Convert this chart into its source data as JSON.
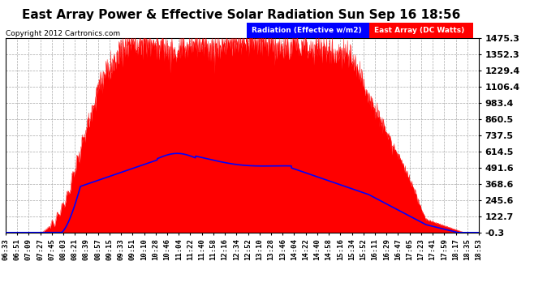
{
  "title": "East Array Power & Effective Solar Radiation Sun Sep 16 18:56",
  "copyright": "Copyright 2012 Cartronics.com",
  "legend_radiation": "Radiation (Effective w/m2)",
  "legend_array": "East Array (DC Watts)",
  "yticks": [
    -0.3,
    122.7,
    245.6,
    368.6,
    491.6,
    614.5,
    737.5,
    860.5,
    983.4,
    1106.4,
    1229.4,
    1352.3,
    1475.3
  ],
  "ymin": -0.3,
  "ymax": 1475.3,
  "bg_color": "#ffffff",
  "plot_bg_color": "#ffffff",
  "grid_color": "#aaaaaa",
  "radiation_color": "#0000ff",
  "array_color": "#ff0000",
  "title_fontsize": 11,
  "tick_fontsize": 6.5,
  "ytick_fontsize": 8,
  "xtick_labels": [
    "06:33",
    "06:51",
    "07:09",
    "07:27",
    "07:45",
    "08:03",
    "08:21",
    "08:39",
    "08:57",
    "09:15",
    "09:33",
    "09:51",
    "10:10",
    "10:28",
    "10:46",
    "11:04",
    "11:22",
    "11:40",
    "11:58",
    "12:16",
    "12:34",
    "12:52",
    "13:10",
    "13:28",
    "13:46",
    "14:04",
    "14:22",
    "14:40",
    "14:58",
    "15:16",
    "15:34",
    "15:52",
    "16:11",
    "16:29",
    "16:47",
    "17:05",
    "17:23",
    "17:41",
    "17:59",
    "18:17",
    "18:35",
    "18:53"
  ]
}
